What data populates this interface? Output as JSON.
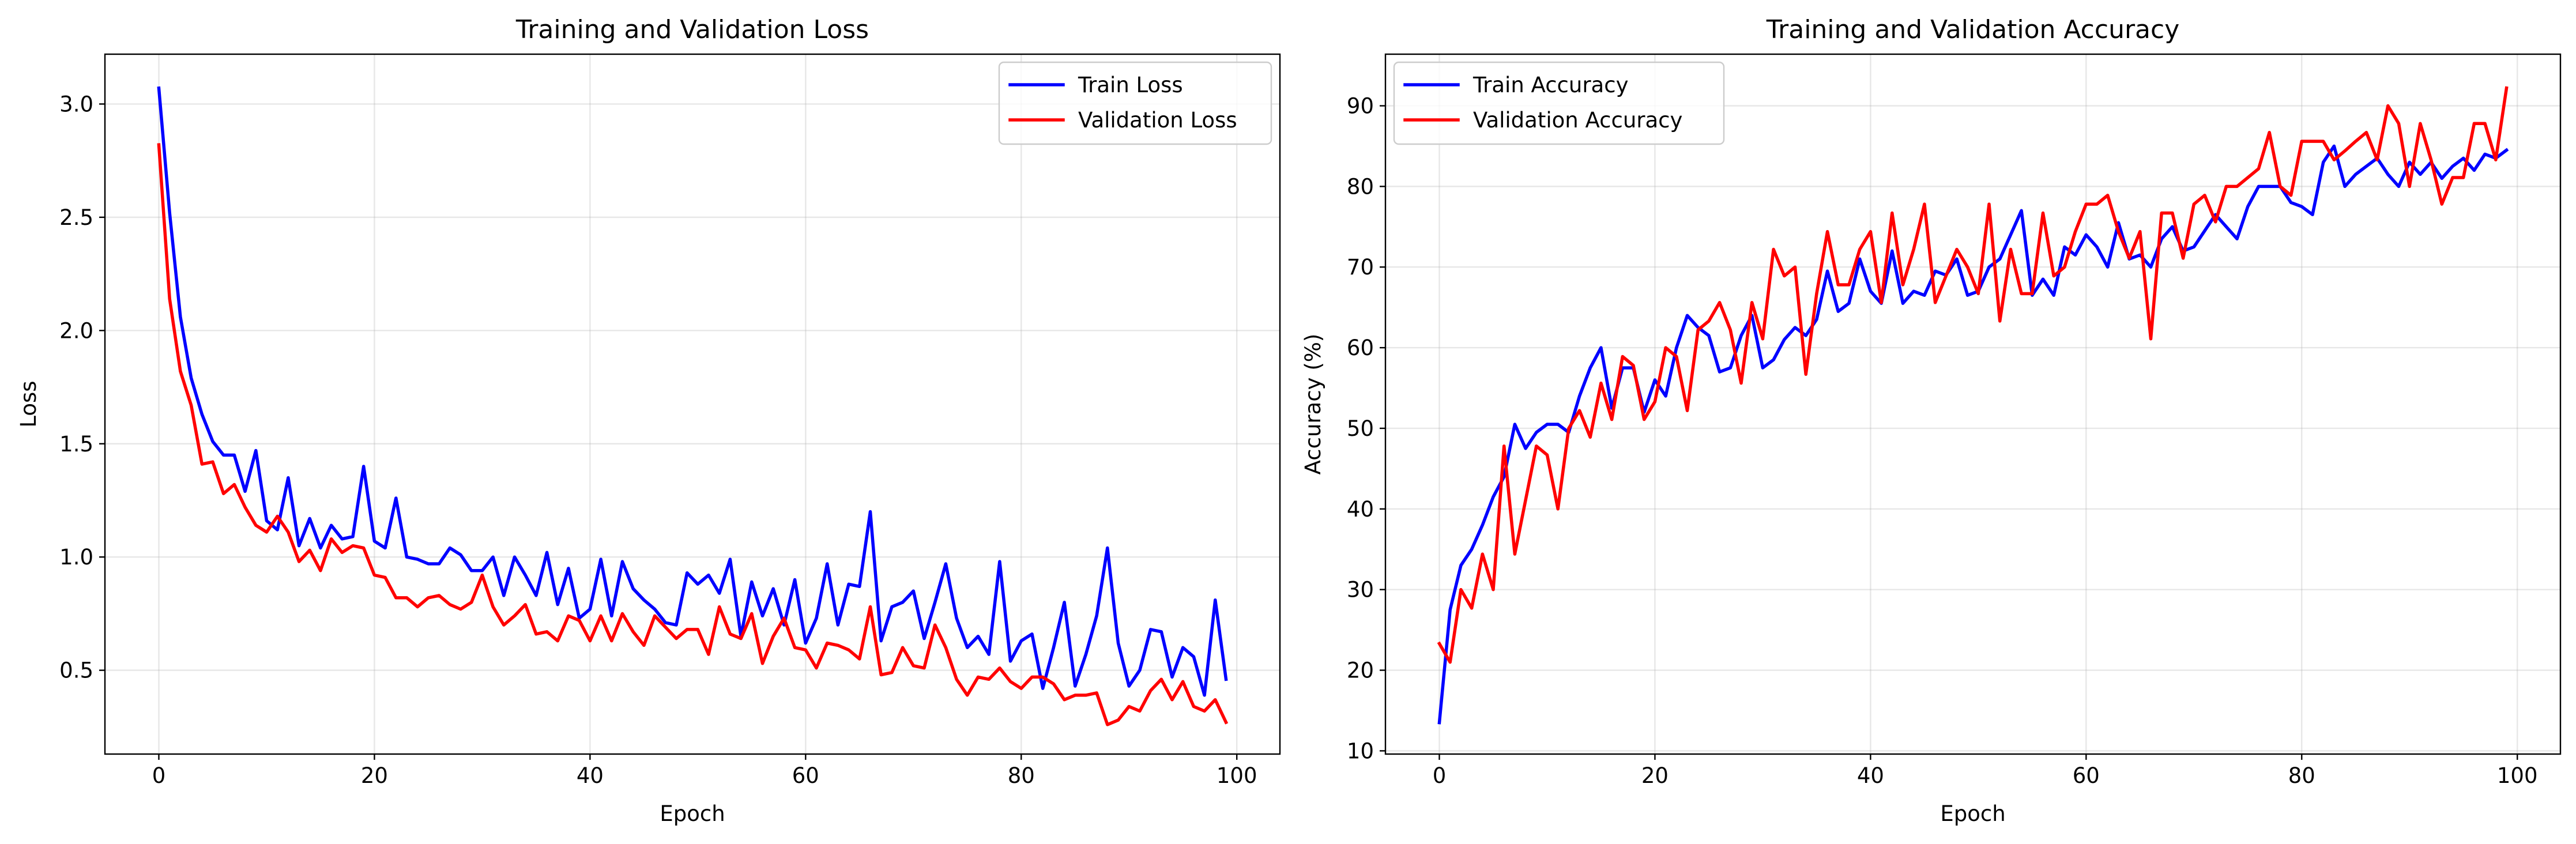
{
  "colors": {
    "train": "#0000ff",
    "validation": "#ff0000"
  },
  "chart_data": [
    {
      "type": "line",
      "title": "Training and Validation Loss",
      "xlabel": "Epoch",
      "ylabel": "Loss",
      "xlim": [
        -5,
        104
      ],
      "ylim": [
        0.13,
        3.22
      ],
      "xticks": [
        0,
        20,
        40,
        60,
        80,
        100
      ],
      "yticks": [
        0.5,
        1.0,
        1.5,
        2.0,
        2.5,
        3.0
      ],
      "ytick_labels": [
        "0.5",
        "1.0",
        "1.5",
        "2.0",
        "2.5",
        "3.0"
      ],
      "grid": true,
      "legend_position": "top-right",
      "x": [
        0,
        1,
        2,
        3,
        4,
        5,
        6,
        7,
        8,
        9,
        10,
        11,
        12,
        13,
        14,
        15,
        16,
        17,
        18,
        19,
        20,
        21,
        22,
        23,
        24,
        25,
        26,
        27,
        28,
        29,
        30,
        31,
        32,
        33,
        34,
        35,
        36,
        37,
        38,
        39,
        40,
        41,
        42,
        43,
        44,
        45,
        46,
        47,
        48,
        49,
        50,
        51,
        52,
        53,
        54,
        55,
        56,
        57,
        58,
        59,
        60,
        61,
        62,
        63,
        64,
        65,
        66,
        67,
        68,
        69,
        70,
        71,
        72,
        73,
        74,
        75,
        76,
        77,
        78,
        79,
        80,
        81,
        82,
        83,
        84,
        85,
        86,
        87,
        88,
        89,
        90,
        91,
        92,
        93,
        94,
        95,
        96,
        97,
        98,
        99
      ],
      "series": [
        {
          "name": "Train Loss",
          "color": "#0000ff",
          "values": [
            3.07,
            2.52,
            2.06,
            1.79,
            1.63,
            1.51,
            1.45,
            1.45,
            1.29,
            1.47,
            1.16,
            1.12,
            1.35,
            1.05,
            1.17,
            1.04,
            1.14,
            1.08,
            1.09,
            1.4,
            1.07,
            1.04,
            1.26,
            1.0,
            0.99,
            0.97,
            0.97,
            1.04,
            1.01,
            0.94,
            0.94,
            1.0,
            0.83,
            1.0,
            0.92,
            0.83,
            1.02,
            0.79,
            0.95,
            0.73,
            0.77,
            0.99,
            0.74,
            0.98,
            0.86,
            0.81,
            0.77,
            0.71,
            0.7,
            0.93,
            0.88,
            0.92,
            0.84,
            0.99,
            0.65,
            0.89,
            0.74,
            0.86,
            0.7,
            0.9,
            0.62,
            0.73,
            0.97,
            0.7,
            0.88,
            0.87,
            1.2,
            0.63,
            0.78,
            0.8,
            0.85,
            0.64,
            0.8,
            0.97,
            0.73,
            0.6,
            0.65,
            0.57,
            0.98,
            0.54,
            0.63,
            0.66,
            0.42,
            0.6,
            0.8,
            0.43,
            0.57,
            0.74,
            1.04,
            0.62,
            0.43,
            0.5,
            0.68,
            0.67,
            0.47,
            0.6,
            0.56,
            0.39,
            0.81,
            0.46
          ]
        },
        {
          "name": "Validation Loss",
          "color": "#ff0000",
          "values": [
            2.82,
            2.14,
            1.82,
            1.67,
            1.41,
            1.42,
            1.28,
            1.32,
            1.22,
            1.14,
            1.11,
            1.18,
            1.11,
            0.98,
            1.03,
            0.94,
            1.08,
            1.02,
            1.05,
            1.04,
            0.92,
            0.91,
            0.82,
            0.82,
            0.78,
            0.82,
            0.83,
            0.79,
            0.77,
            0.8,
            0.92,
            0.78,
            0.7,
            0.74,
            0.79,
            0.66,
            0.67,
            0.63,
            0.74,
            0.72,
            0.63,
            0.74,
            0.63,
            0.75,
            0.67,
            0.61,
            0.74,
            0.69,
            0.64,
            0.68,
            0.68,
            0.57,
            0.78,
            0.66,
            0.64,
            0.75,
            0.53,
            0.65,
            0.73,
            0.6,
            0.59,
            0.51,
            0.62,
            0.61,
            0.59,
            0.55,
            0.78,
            0.48,
            0.49,
            0.6,
            0.52,
            0.51,
            0.7,
            0.6,
            0.46,
            0.39,
            0.47,
            0.46,
            0.51,
            0.45,
            0.42,
            0.47,
            0.47,
            0.44,
            0.37,
            0.39,
            0.39,
            0.4,
            0.26,
            0.28,
            0.34,
            0.32,
            0.41,
            0.46,
            0.37,
            0.45,
            0.34,
            0.32,
            0.37,
            0.27
          ]
        }
      ]
    },
    {
      "type": "line",
      "title": "Training and Validation Accuracy",
      "xlabel": "Epoch",
      "ylabel": "Accuracy (%)",
      "xlim": [
        -5,
        104
      ],
      "ylim": [
        9.6,
        96.4
      ],
      "xticks": [
        0,
        20,
        40,
        60,
        80,
        100
      ],
      "yticks": [
        10,
        20,
        30,
        40,
        50,
        60,
        70,
        80,
        90
      ],
      "ytick_labels": [
        "10",
        "20",
        "30",
        "40",
        "50",
        "60",
        "70",
        "80",
        "90"
      ],
      "grid": true,
      "legend_position": "top-left",
      "x": [
        0,
        1,
        2,
        3,
        4,
        5,
        6,
        7,
        8,
        9,
        10,
        11,
        12,
        13,
        14,
        15,
        16,
        17,
        18,
        19,
        20,
        21,
        22,
        23,
        24,
        25,
        26,
        27,
        28,
        29,
        30,
        31,
        32,
        33,
        34,
        35,
        36,
        37,
        38,
        39,
        40,
        41,
        42,
        43,
        44,
        45,
        46,
        47,
        48,
        49,
        50,
        51,
        52,
        53,
        54,
        55,
        56,
        57,
        58,
        59,
        60,
        61,
        62,
        63,
        64,
        65,
        66,
        67,
        68,
        69,
        70,
        71,
        72,
        73,
        74,
        75,
        76,
        77,
        78,
        79,
        80,
        81,
        82,
        83,
        84,
        85,
        86,
        87,
        88,
        89,
        90,
        91,
        92,
        93,
        94,
        95,
        96,
        97,
        98,
        99
      ],
      "series": [
        {
          "name": "Train Accuracy",
          "color": "#0000ff",
          "values": [
            13.5,
            27.5,
            33.0,
            35.0,
            38.0,
            41.5,
            44.0,
            50.5,
            47.5,
            49.5,
            50.5,
            50.5,
            49.5,
            54.0,
            57.5,
            60.0,
            52.5,
            57.5,
            57.5,
            52.0,
            56.0,
            54.0,
            60.0,
            64.0,
            62.5,
            61.5,
            57.0,
            57.5,
            61.5,
            64.0,
            57.5,
            58.5,
            61.0,
            62.5,
            61.5,
            63.5,
            69.5,
            64.5,
            65.5,
            71.0,
            67.0,
            65.5,
            72.0,
            65.5,
            67.0,
            66.5,
            69.5,
            69.0,
            71.0,
            66.5,
            67.0,
            70.0,
            71.0,
            74.0,
            77.0,
            66.5,
            68.5,
            66.5,
            72.5,
            71.5,
            74.0,
            72.5,
            70.0,
            75.5,
            71.0,
            71.5,
            70.0,
            73.5,
            75.0,
            72.0,
            72.5,
            74.5,
            76.5,
            75.0,
            73.5,
            77.5,
            80.0,
            80.0,
            80.0,
            78.0,
            77.5,
            76.5,
            83.0,
            85.0,
            80.0,
            81.5,
            82.5,
            83.5,
            81.5,
            80.0,
            83.0,
            81.5,
            83.0,
            81.0,
            82.5,
            83.5,
            82.0,
            84.0,
            83.5,
            84.5
          ]
        },
        {
          "name": "Validation Accuracy",
          "color": "#ff0000",
          "values": [
            23.3,
            21.0,
            30.0,
            27.7,
            34.4,
            30.0,
            47.8,
            34.4,
            41.1,
            47.8,
            46.7,
            40.0,
            50.0,
            52.2,
            48.9,
            55.6,
            51.1,
            58.9,
            57.8,
            51.1,
            53.3,
            60.0,
            58.9,
            52.2,
            62.2,
            63.3,
            65.6,
            62.2,
            55.6,
            65.6,
            61.1,
            72.2,
            68.9,
            70.0,
            56.7,
            66.7,
            74.4,
            67.8,
            67.8,
            72.2,
            74.4,
            65.6,
            76.7,
            67.8,
            72.2,
            77.8,
            65.6,
            68.9,
            72.2,
            70.0,
            66.7,
            77.8,
            63.3,
            72.2,
            66.7,
            66.7,
            76.7,
            68.9,
            70.0,
            74.4,
            77.8,
            77.8,
            78.9,
            74.4,
            71.1,
            74.4,
            61.1,
            76.7,
            76.7,
            71.1,
            77.8,
            78.9,
            75.6,
            80.0,
            80.0,
            81.1,
            82.2,
            86.7,
            80.0,
            78.9,
            85.6,
            85.6,
            85.6,
            83.3,
            84.4,
            85.6,
            86.7,
            83.3,
            90.0,
            87.8,
            80.0,
            87.8,
            83.3,
            77.8,
            81.1,
            81.1,
            87.8,
            87.8,
            83.3,
            92.2
          ]
        }
      ]
    }
  ]
}
